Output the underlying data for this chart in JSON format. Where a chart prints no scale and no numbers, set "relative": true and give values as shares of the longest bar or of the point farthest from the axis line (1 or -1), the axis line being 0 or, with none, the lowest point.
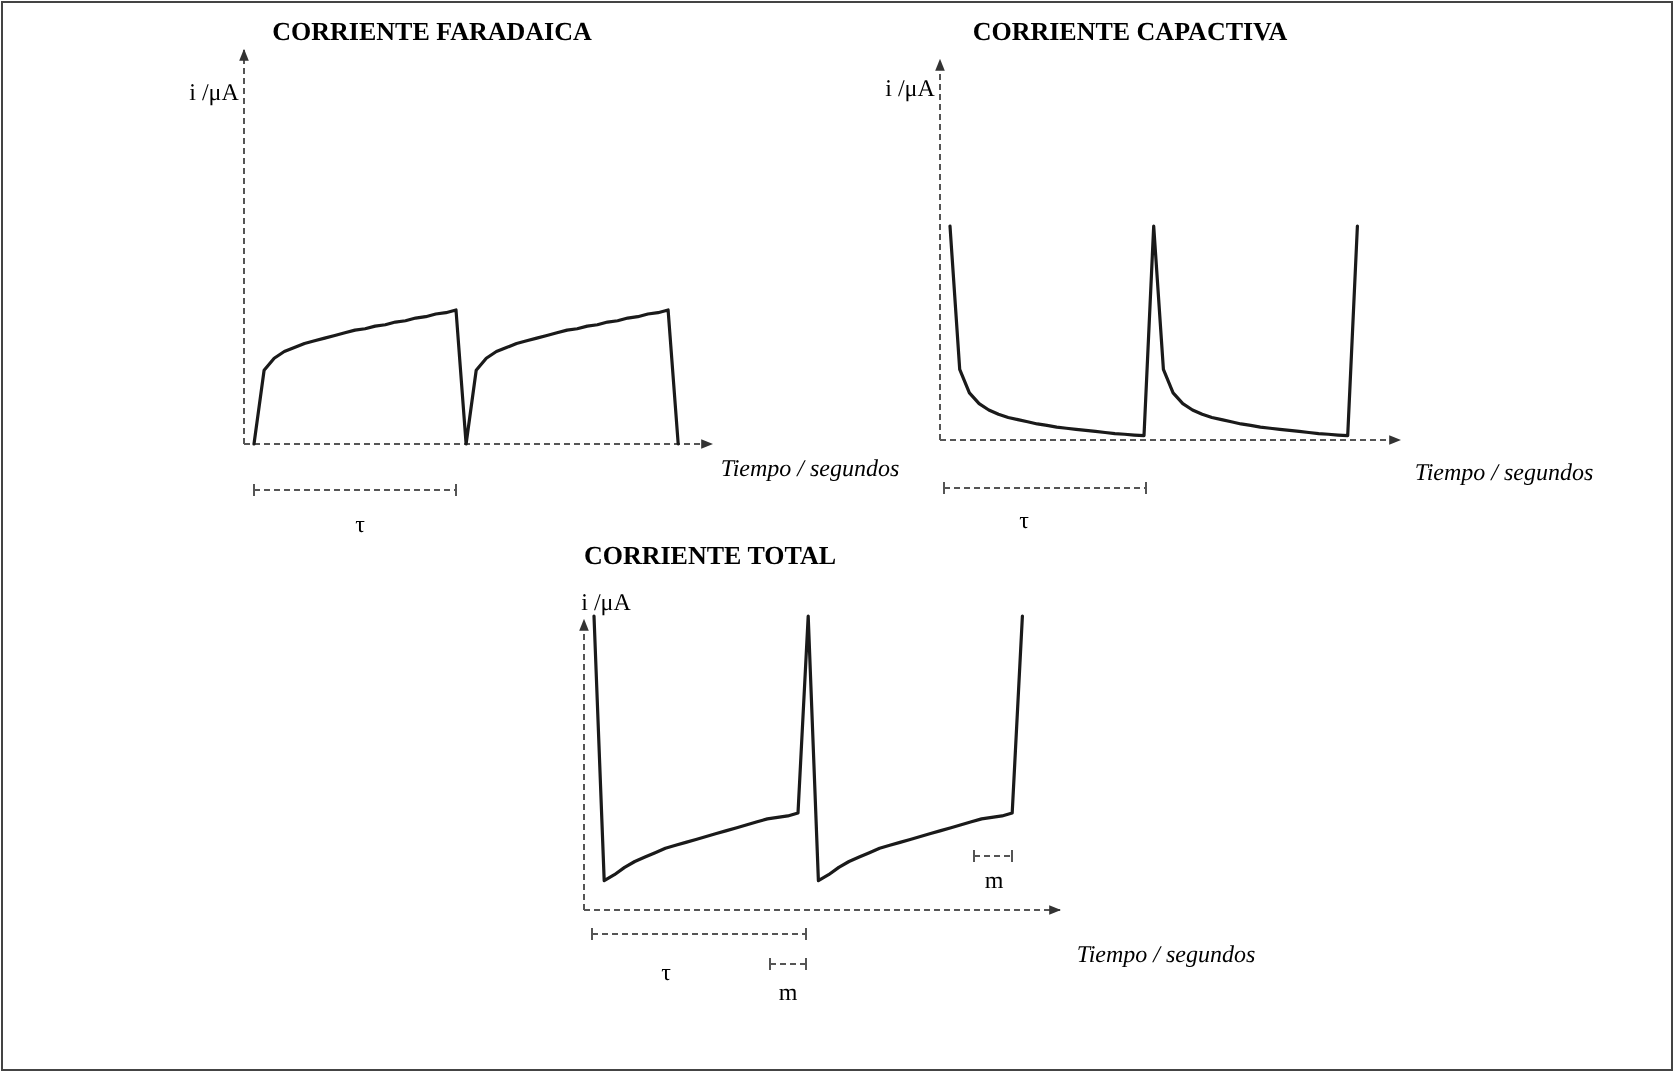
{
  "chart_data": [
    {
      "type": "line",
      "title": "CORRIENTE FARADAICA",
      "xlabel": "Tiempo / segundos",
      "ylabel": "i /μA",
      "relative": true,
      "color": "#1a1a1a",
      "annotations": [
        "τ"
      ],
      "categories": [
        null,
        null,
        null,
        null,
        null,
        null,
        null,
        null,
        null,
        null,
        null,
        null,
        null,
        null,
        null,
        null,
        null,
        null,
        null,
        null,
        null,
        null,
        null,
        null,
        null,
        null,
        null,
        null,
        null,
        null,
        null,
        null,
        null,
        null,
        null,
        null,
        null,
        null,
        null,
        null,
        null,
        null,
        null
      ],
      "values": [
        0,
        0.55,
        0.64,
        0.69,
        0.72,
        0.75,
        0.77,
        0.79,
        0.81,
        0.83,
        0.85,
        0.86,
        0.88,
        0.89,
        0.91,
        0.92,
        0.94,
        0.95,
        0.97,
        0.98,
        1,
        0,
        0.55,
        0.64,
        0.69,
        0.72,
        0.75,
        0.77,
        0.79,
        0.81,
        0.83,
        0.85,
        0.86,
        0.88,
        0.89,
        0.91,
        0.92,
        0.94,
        0.95,
        0.97,
        0.98,
        1,
        0
      ]
    },
    {
      "type": "line",
      "title": "CORRIENTE CAPACTIVA",
      "xlabel": "Tiempo / segundos",
      "ylabel": "i /μA",
      "relative": true,
      "color": "#1a1a1a",
      "annotations": [
        "τ"
      ],
      "categories": [
        null,
        null,
        null,
        null,
        null,
        null,
        null,
        null,
        null,
        null,
        null,
        null,
        null,
        null,
        null,
        null,
        null,
        null,
        null,
        null,
        null,
        null,
        null,
        null,
        null,
        null,
        null,
        null,
        null,
        null,
        null,
        null,
        null,
        null,
        null,
        null,
        null,
        null,
        null,
        null,
        null,
        null,
        null
      ],
      "values": [
        1,
        0.33,
        0.22,
        0.17,
        0.14,
        0.12,
        0.105,
        0.095,
        0.085,
        0.075,
        0.068,
        0.06,
        0.055,
        0.05,
        0.045,
        0.04,
        0.035,
        0.03,
        0.027,
        0.023,
        0.02,
        1,
        0.33,
        0.22,
        0.17,
        0.14,
        0.12,
        0.105,
        0.095,
        0.085,
        0.075,
        0.068,
        0.06,
        0.055,
        0.05,
        0.045,
        0.04,
        0.035,
        0.03,
        0.027,
        0.023,
        0.02,
        1
      ]
    },
    {
      "type": "line",
      "title": "CORRIENTE TOTAL",
      "xlabel": "Tiempo / segundos",
      "ylabel": "i /μA",
      "relative": true,
      "color": "#1a1a1a",
      "annotations": [
        "τ",
        "m",
        "m"
      ],
      "categories": [
        null,
        null,
        null,
        null,
        null,
        null,
        null,
        null,
        null,
        null,
        null,
        null,
        null,
        null,
        null,
        null,
        null,
        null,
        null,
        null,
        null,
        null,
        null,
        null,
        null,
        null,
        null,
        null,
        null,
        null,
        null,
        null,
        null,
        null,
        null,
        null,
        null,
        null,
        null,
        null,
        null,
        null,
        null
      ],
      "values": [
        1,
        0.1,
        0.12,
        0.145,
        0.165,
        0.18,
        0.195,
        0.21,
        0.22,
        0.23,
        0.24,
        0.25,
        0.26,
        0.27,
        0.28,
        0.29,
        0.3,
        0.31,
        0.315,
        0.32,
        0.33,
        1,
        0.1,
        0.12,
        0.145,
        0.165,
        0.18,
        0.195,
        0.21,
        0.22,
        0.23,
        0.24,
        0.25,
        0.26,
        0.27,
        0.28,
        0.29,
        0.3,
        0.31,
        0.315,
        0.32,
        0.33,
        1
      ]
    }
  ]
}
